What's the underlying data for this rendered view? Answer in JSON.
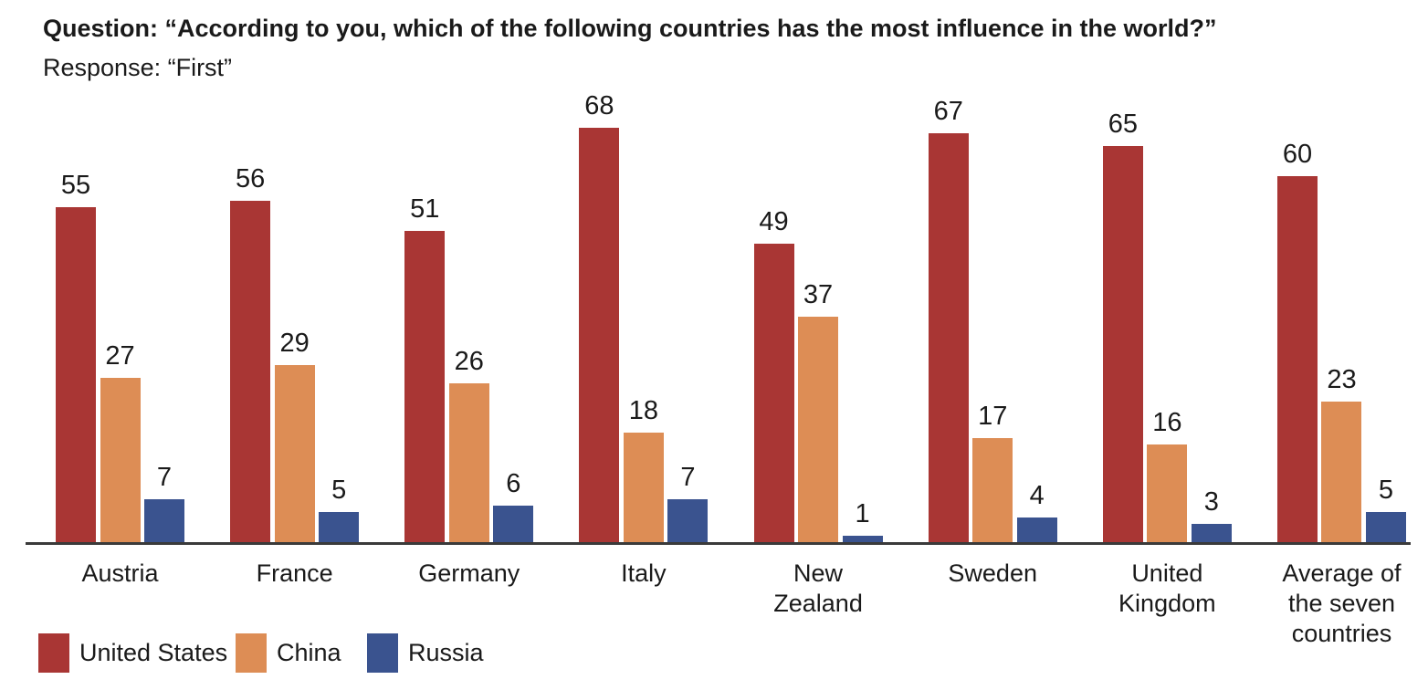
{
  "chart_data": {
    "type": "bar",
    "title": "Question: “According to you, which of the following countries has the most influence in the world?”",
    "subtitle": "Response: “First”",
    "categories": [
      "Austria",
      "France",
      "Germany",
      "Italy",
      "New Zealand",
      "Sweden",
      "United Kingdom",
      "Average of the seven countries"
    ],
    "category_labels_wrapped": [
      "Austria",
      "France",
      "Germany",
      "Italy",
      "New\nZealand",
      "Sweden",
      "United\nKingdom",
      "Average of\nthe seven\ncountries"
    ],
    "series": [
      {
        "name": "United States",
        "color": "#A93634",
        "values": [
          55,
          56,
          51,
          68,
          49,
          67,
          65,
          60
        ]
      },
      {
        "name": "China",
        "color": "#DD8D55",
        "values": [
          27,
          29,
          26,
          18,
          37,
          17,
          16,
          23
        ]
      },
      {
        "name": "Russia",
        "color": "#3A538F",
        "values": [
          7,
          5,
          6,
          7,
          1,
          4,
          3,
          5
        ]
      }
    ],
    "value_labels": true,
    "legend_position": "bottom-left",
    "y_axis": {
      "visible": false,
      "min": 0,
      "max": 68
    },
    "grid": false,
    "axis_line_color": "#3A3A3A",
    "text_color": "#1A1A1A",
    "background_color": "#FFFFFF"
  }
}
